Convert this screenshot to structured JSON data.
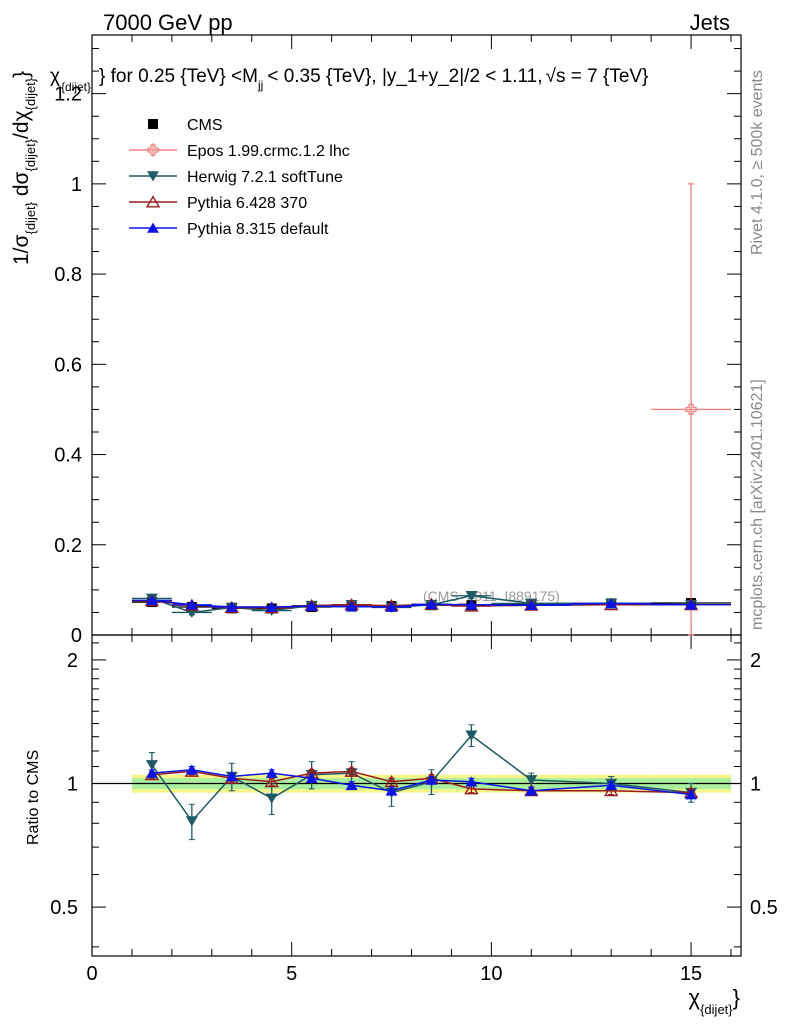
{
  "header": {
    "left_label": "7000 GeV pp",
    "right_label": "Jets"
  },
  "side_labels": {
    "rivet": "Rivet 4.1.0, ≥ 500k events",
    "mcplots": "mcplots.cern.ch [arXiv:2401.10621]"
  },
  "watermark": "(CMS_2011_I889175)",
  "chart_data": {
    "type": "line",
    "title": "χ_{dijet} for 0.25 {TeV} < M_jj < 0.35 {TeV}, |y_1+y_2|/2 < 1.11, √s = 7 {TeV}",
    "title_parts": {
      "t1": "χ",
      "t1sub": "{dijet}",
      "t2": "} for 0.25 {TeV} <M",
      "t2sub": "jj",
      "t3": "< 0.35 {TeV}, |y_1+y_2|/2 < 1.11,",
      "t4": "√",
      "t5": "s = 7 {TeV}"
    },
    "ylabel_parts": {
      "a": "1/σ",
      "asub": "{dijet}",
      "b": " dσ",
      "bsub": "{dijet}",
      "c": "/dχ",
      "csub": "{dijet}",
      "d": "}"
    },
    "xlabel_parts": {
      "main": "χ",
      "sub": "{dijet}",
      "close": "}"
    },
    "ratio_ylabel": "Ratio to CMS",
    "xlim": [
      0,
      16.25
    ],
    "ylim_main": [
      0,
      1.33
    ],
    "ylim_ratio": [
      0.38,
      2.3
    ],
    "x_ticks": [
      "0",
      "5",
      "10",
      "15"
    ],
    "y_ticks_main": [
      "0",
      "0.2",
      "0.4",
      "0.6",
      "0.8",
      "1",
      "1.2"
    ],
    "y_ticks_ratio": [
      "0.5",
      "1",
      "2"
    ],
    "x": [
      1.5,
      2.5,
      3.5,
      4.5,
      5.5,
      6.5,
      7.5,
      8.5,
      9.5,
      11.0,
      13.0,
      15.0
    ],
    "xerr": [
      0.5,
      0.5,
      0.5,
      0.5,
      0.5,
      0.5,
      0.5,
      0.5,
      0.5,
      1.0,
      1.0,
      1.0
    ],
    "data": {
      "name": "CMS",
      "values": [
        0.073,
        0.062,
        0.059,
        0.059,
        0.062,
        0.063,
        0.064,
        0.066,
        0.066,
        0.069,
        0.07,
        0.071
      ],
      "errors": [
        0.004,
        0.003,
        0.003,
        0.003,
        0.003,
        0.003,
        0.003,
        0.003,
        0.003,
        0.003,
        0.003,
        0.004
      ],
      "band_inner": 0.03,
      "band_outer": 0.05
    },
    "series": [
      {
        "name": "Epos 1.99.crmc.1.2 lhc",
        "color": "#f08080",
        "marker": "cross-open",
        "x": [
          15.0
        ],
        "xerr": [
          1.0
        ],
        "values": [
          0.5
        ],
        "errors": [
          0.5
        ]
      },
      {
        "name": "Herwig 7.2.1 softTune",
        "color": "#1e5a64",
        "marker": "triangle-down",
        "values": [
          0.081,
          0.05,
          0.061,
          0.054,
          0.065,
          0.067,
          0.061,
          0.067,
          0.087,
          0.07,
          0.07,
          0.067
        ],
        "errors": [
          0.006,
          0.005,
          0.005,
          0.005,
          0.005,
          0.005,
          0.005,
          0.005,
          0.006,
          0.003,
          0.003,
          0.003
        ],
        "ratio": [
          1.11,
          0.81,
          1.04,
          0.92,
          1.05,
          1.06,
          0.95,
          1.01,
          1.31,
          1.02,
          1.0,
          0.95
        ],
        "ratio_err": [
          0.08,
          0.08,
          0.08,
          0.08,
          0.08,
          0.07,
          0.07,
          0.07,
          0.08,
          0.04,
          0.04,
          0.05
        ]
      },
      {
        "name": "Pythia 6.428 370",
        "color": "#9b1b1b",
        "marker": "triangle-up-open",
        "values": [
          0.076,
          0.066,
          0.061,
          0.06,
          0.065,
          0.067,
          0.065,
          0.068,
          0.064,
          0.066,
          0.067,
          0.067
        ],
        "errors": [
          0.002,
          0.002,
          0.002,
          0.002,
          0.002,
          0.002,
          0.002,
          0.002,
          0.002,
          0.002,
          0.002,
          0.002
        ],
        "ratio": [
          1.05,
          1.07,
          1.03,
          1.01,
          1.06,
          1.07,
          1.01,
          1.03,
          0.97,
          0.96,
          0.96,
          0.95
        ],
        "ratio_err": [
          0.02,
          0.02,
          0.02,
          0.02,
          0.02,
          0.02,
          0.02,
          0.02,
          0.02,
          0.02,
          0.02,
          0.02
        ]
      },
      {
        "name": "Pythia 8.315 default",
        "color": "#0a14e6",
        "marker": "triangle-up",
        "values": [
          0.077,
          0.067,
          0.062,
          0.062,
          0.064,
          0.063,
          0.062,
          0.068,
          0.067,
          0.066,
          0.07,
          0.067
        ],
        "errors": [
          0.002,
          0.002,
          0.002,
          0.002,
          0.002,
          0.002,
          0.002,
          0.002,
          0.002,
          0.002,
          0.002,
          0.002
        ],
        "ratio": [
          1.06,
          1.08,
          1.04,
          1.06,
          1.03,
          0.99,
          0.96,
          1.02,
          1.01,
          0.96,
          0.99,
          0.94
        ],
        "ratio_err": [
          0.02,
          0.02,
          0.02,
          0.02,
          0.02,
          0.02,
          0.02,
          0.02,
          0.02,
          0.02,
          0.02,
          0.02
        ]
      }
    ],
    "legend_position": "top-left"
  }
}
